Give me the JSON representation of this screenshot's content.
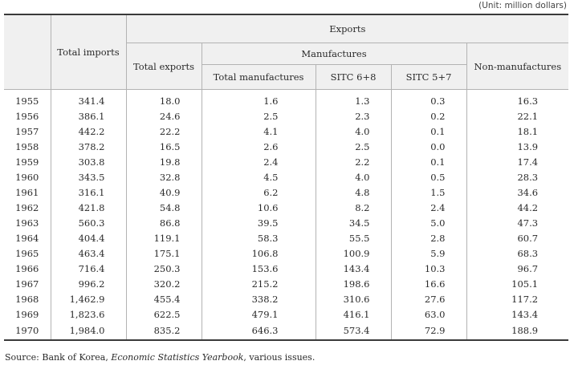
{
  "unit_note": "(Unit: million dollars)",
  "headers": {
    "total_imports": "Total imports",
    "exports": "Exports",
    "total_exports": "Total exports",
    "manufactures": "Manufactures",
    "non_manufactures": "Non-manufactures",
    "total_manufactures": "Total manufactures",
    "sitc_68": "SITC 6+8",
    "sitc_57": "SITC 5+7"
  },
  "rows": [
    [
      "1955",
      "341.4",
      "18.0",
      "1.6",
      "1.3",
      "0.3",
      "16.3"
    ],
    [
      "1956",
      "386.1",
      "24.6",
      "2.5",
      "2.3",
      "0.2",
      "22.1"
    ],
    [
      "1957",
      "442.2",
      "22.2",
      "4.1",
      "4.0",
      "0.1",
      "18.1"
    ],
    [
      "1958",
      "378.2",
      "16.5",
      "2.6",
      "2.5",
      "0.0",
      "13.9"
    ],
    [
      "1959",
      "303.8",
      "19.8",
      "2.4",
      "2.2",
      "0.1",
      "17.4"
    ],
    [
      "1960",
      "343.5",
      "32.8",
      "4.5",
      "4.0",
      "0.5",
      "28.3"
    ],
    [
      "1961",
      "316.1",
      "40.9",
      "6.2",
      "4.8",
      "1.5",
      "34.6"
    ],
    [
      "1962",
      "421.8",
      "54.8",
      "10.6",
      "8.2",
      "2.4",
      "44.2"
    ],
    [
      "1963",
      "560.3",
      "86.8",
      "39.5",
      "34.5",
      "5.0",
      "47.3"
    ],
    [
      "1964",
      "404.4",
      "119.1",
      "58.3",
      "55.5",
      "2.8",
      "60.7"
    ],
    [
      "1965",
      "463.4",
      "175.1",
      "106.8",
      "100.9",
      "5.9",
      "68.3"
    ],
    [
      "1966",
      "716.4",
      "250.3",
      "153.6",
      "143.4",
      "10.3",
      "96.7"
    ],
    [
      "1967",
      "996.2",
      "320.2",
      "215.2",
      "198.6",
      "16.6",
      "105.1"
    ],
    [
      "1968",
      "1,462.9",
      "455.4",
      "338.2",
      "310.6",
      "27.6",
      "117.2"
    ],
    [
      "1969",
      "1,823.6",
      "622.5",
      "479.1",
      "416.1",
      "63.0",
      "143.4"
    ],
    [
      "1970",
      "1,984.0",
      "835.2",
      "646.3",
      "573.4",
      "72.9",
      "188.9"
    ]
  ],
  "source": {
    "prefix": "Source: Bank of Korea, ",
    "title": "Economic Statistics Yearbook",
    "suffix": ", various issues."
  }
}
